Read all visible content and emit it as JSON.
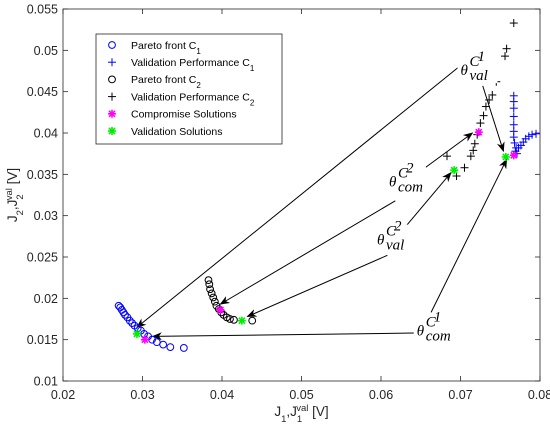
{
  "chart_data": {
    "type": "scatter",
    "title": "",
    "xlabel": "J1,J1val [V]",
    "ylabel": "J2,J2val [V]",
    "xlim": [
      0.02,
      0.08
    ],
    "ylim": [
      0.01,
      0.055
    ],
    "x_ticks": [
      "0.02",
      "0.03",
      "0.04",
      "0.05",
      "0.06",
      "0.07",
      "0.08"
    ],
    "y_ticks": [
      "0.01",
      "0.015",
      "0.02",
      "0.025",
      "0.03",
      "0.035",
      "0.04",
      "0.045",
      "0.05",
      "0.055"
    ],
    "x_tick_values": [
      0.02,
      0.03,
      0.04,
      0.05,
      0.06,
      0.07,
      0.08
    ],
    "y_tick_values": [
      0.01,
      0.015,
      0.02,
      0.025,
      0.03,
      0.035,
      0.04,
      0.045,
      0.05,
      0.055
    ],
    "legend_position": "top-left",
    "grid": false,
    "series": [
      {
        "name": "Pareto front C1",
        "marker": "circle",
        "color": "#0000ff",
        "points": [
          [
            0.027,
            0.0191
          ],
          [
            0.0272,
            0.0189
          ],
          [
            0.0274,
            0.0186
          ],
          [
            0.0276,
            0.0183
          ],
          [
            0.0278,
            0.018
          ],
          [
            0.0281,
            0.0177
          ],
          [
            0.0284,
            0.0173
          ],
          [
            0.0287,
            0.017
          ],
          [
            0.029,
            0.0167
          ],
          [
            0.0294,
            0.0164
          ],
          [
            0.0298,
            0.0161
          ],
          [
            0.0302,
            0.0157
          ],
          [
            0.0307,
            0.0154
          ],
          [
            0.0312,
            0.015
          ],
          [
            0.0318,
            0.0147
          ],
          [
            0.0326,
            0.0144
          ],
          [
            0.0335,
            0.0141
          ],
          [
            0.0352,
            0.014
          ]
        ]
      },
      {
        "name": "Validation Performance C1",
        "marker": "plus",
        "color": "#0000ff",
        "points": [
          [
            0.0767,
            0.0445
          ],
          [
            0.0767,
            0.0438
          ],
          [
            0.0767,
            0.043
          ],
          [
            0.0767,
            0.042
          ],
          [
            0.0767,
            0.041
          ],
          [
            0.0767,
            0.0402
          ],
          [
            0.0767,
            0.0395
          ],
          [
            0.0768,
            0.0388
          ],
          [
            0.077,
            0.0382
          ],
          [
            0.0773,
            0.0382
          ],
          [
            0.0776,
            0.0385
          ],
          [
            0.0779,
            0.0389
          ],
          [
            0.0782,
            0.0393
          ],
          [
            0.0786,
            0.0396
          ],
          [
            0.079,
            0.0398
          ],
          [
            0.0795,
            0.0399
          ],
          [
            0.0769,
            0.0378
          ],
          [
            0.0771,
            0.0375
          ]
        ]
      },
      {
        "name": "Pareto front C2",
        "marker": "circle",
        "color": "#000000",
        "points": [
          [
            0.0383,
            0.0222
          ],
          [
            0.0384,
            0.0217
          ],
          [
            0.0385,
            0.0211
          ],
          [
            0.0387,
            0.0206
          ],
          [
            0.0389,
            0.0201
          ],
          [
            0.0391,
            0.0196
          ],
          [
            0.0393,
            0.0191
          ],
          [
            0.0396,
            0.0187
          ],
          [
            0.0399,
            0.0183
          ],
          [
            0.0402,
            0.018
          ],
          [
            0.0406,
            0.0177
          ],
          [
            0.041,
            0.0175
          ],
          [
            0.0415,
            0.0174
          ],
          [
            0.0438,
            0.0173
          ]
        ]
      },
      {
        "name": "Validation Performance C2",
        "marker": "plus",
        "color": "#000000",
        "points": [
          [
            0.0767,
            0.0533
          ],
          [
            0.0758,
            0.0502
          ],
          [
            0.0756,
            0.0493
          ],
          [
            0.0745,
            0.0462
          ],
          [
            0.074,
            0.0446
          ],
          [
            0.0736,
            0.044
          ],
          [
            0.0732,
            0.0432
          ],
          [
            0.0729,
            0.0421
          ],
          [
            0.0725,
            0.0412
          ],
          [
            0.0721,
            0.0398
          ],
          [
            0.0718,
            0.0387
          ],
          [
            0.0716,
            0.0379
          ],
          [
            0.0713,
            0.0372
          ],
          [
            0.0705,
            0.0358
          ],
          [
            0.0695,
            0.0348
          ],
          [
            0.0683,
            0.0372
          ]
        ]
      },
      {
        "name": "Compromise Solutions",
        "marker": "asterisk",
        "color": "#ff00ff",
        "points": [
          [
            0.0303,
            0.015
          ],
          [
            0.0398,
            0.0186
          ],
          [
            0.0723,
            0.0401
          ],
          [
            0.0767,
            0.0373
          ]
        ]
      },
      {
        "name": "Validation Solutions",
        "marker": "asterisk",
        "color": "#00ee00",
        "points": [
          [
            0.0293,
            0.0157
          ],
          [
            0.0425,
            0.0173
          ],
          [
            0.0692,
            0.0355
          ],
          [
            0.0757,
            0.0371
          ]
        ]
      }
    ],
    "annotations": [
      {
        "label": "θ",
        "sup": "C",
        "subsup": "1",
        "sub": "val",
        "pos": [
          0.07,
          0.047
        ],
        "arrows": [
          [
            0.0698,
            0.048,
            0.0293,
            0.0165
          ],
          [
            0.0728,
            0.0457,
            0.0754,
            0.0378
          ]
        ]
      },
      {
        "label": "θ",
        "sup": "C",
        "subsup": "2",
        "sub": "com",
        "pos": [
          0.061,
          0.0335
        ],
        "arrows": [
          [
            0.063,
            0.034,
            0.0715,
            0.04
          ],
          [
            0.0618,
            0.0318,
            0.0398,
            0.0193
          ]
        ]
      },
      {
        "label": "θ",
        "sup": "C",
        "subsup": "2",
        "sub": "val",
        "pos": [
          0.0595,
          0.0265
        ],
        "arrows": [
          [
            0.0625,
            0.028,
            0.0688,
            0.0352
          ],
          [
            0.0608,
            0.0252,
            0.0432,
            0.0178
          ]
        ]
      },
      {
        "label": "θ",
        "sup": "C",
        "subsup": "1",
        "sub": "com",
        "pos": [
          0.0645,
          0.0155
        ],
        "arrows": [
          [
            0.0663,
            0.0183,
            0.0758,
            0.0368
          ],
          [
            0.0642,
            0.0158,
            0.0313,
            0.0154
          ]
        ]
      }
    ]
  }
}
